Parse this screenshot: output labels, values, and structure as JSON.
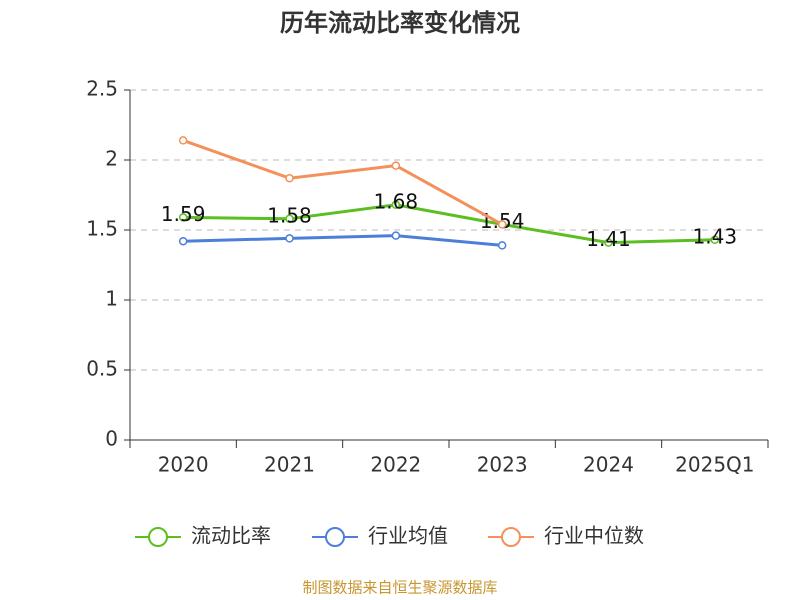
{
  "chart_data": {
    "type": "line",
    "title": "历年流动比率变化情况",
    "categories": [
      "2020",
      "2021",
      "2022",
      "2023",
      "2024",
      "2025Q1"
    ],
    "series": [
      {
        "name": "流动比率",
        "color": "#5bbf21",
        "values": [
          1.59,
          1.58,
          1.68,
          1.54,
          1.41,
          1.43
        ],
        "show_labels": true
      },
      {
        "name": "行业均值",
        "color": "#4d7fd8",
        "values": [
          1.42,
          1.44,
          1.46,
          1.39,
          null,
          null
        ]
      },
      {
        "name": "行业中位数",
        "color": "#f4915b",
        "values": [
          2.14,
          1.87,
          1.96,
          1.54,
          null,
          null
        ]
      }
    ],
    "ylim": [
      0,
      2.5
    ],
    "yticks": [
      0,
      0.5,
      1,
      1.5,
      2,
      2.5
    ],
    "grid": true,
    "source": "制图数据来自恒生聚源数据库"
  }
}
